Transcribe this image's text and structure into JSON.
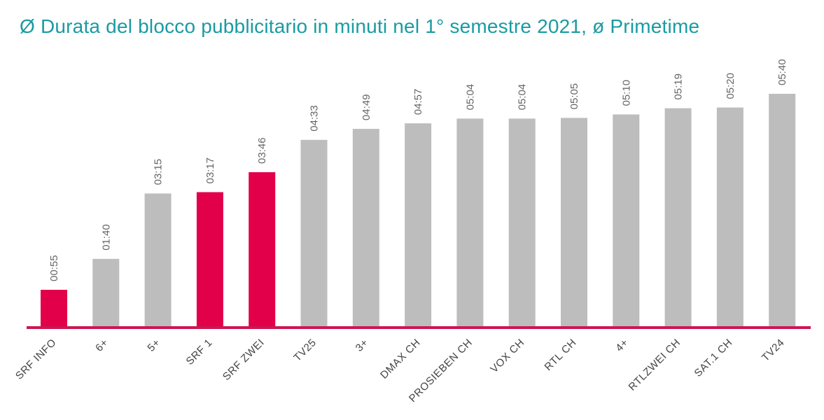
{
  "colors": {
    "title": "#1a9ba1",
    "highlight": "#e2004a",
    "bar": "#bdbdbd",
    "baseline": "#cc1752"
  },
  "chart_data": {
    "type": "bar",
    "title": "Ø Durata del blocco pubblicitario in minuti nel 1° semestre 2021, ø Primetime",
    "xlabel": "",
    "ylabel": "",
    "ylim": [
      0,
      340
    ],
    "grid": false,
    "legend": "none",
    "categories": [
      "SRF INFO",
      "6+",
      "5+",
      "SRF 1",
      "SRF ZWEI",
      "TV25",
      "3+",
      "DMAX CH",
      "PROSIEBEN CH",
      "VOX CH",
      "RTL CH",
      "4+",
      "RTLZWEI CH",
      "SAT.1 CH",
      "TV24"
    ],
    "values": [
      55,
      100,
      195,
      197,
      226,
      273,
      289,
      297,
      304,
      304,
      305,
      310,
      319,
      320,
      340
    ],
    "data_labels": [
      "00:55",
      "01:40",
      "03:15",
      "03:17",
      "03:46",
      "04:33",
      "04:49",
      "04:57",
      "05:04",
      "05:04",
      "05:05",
      "05:10",
      "05:19",
      "05:20",
      "05:40"
    ],
    "highlighted": [
      true,
      false,
      false,
      true,
      true,
      false,
      false,
      false,
      false,
      false,
      false,
      false,
      false,
      false,
      false
    ]
  }
}
